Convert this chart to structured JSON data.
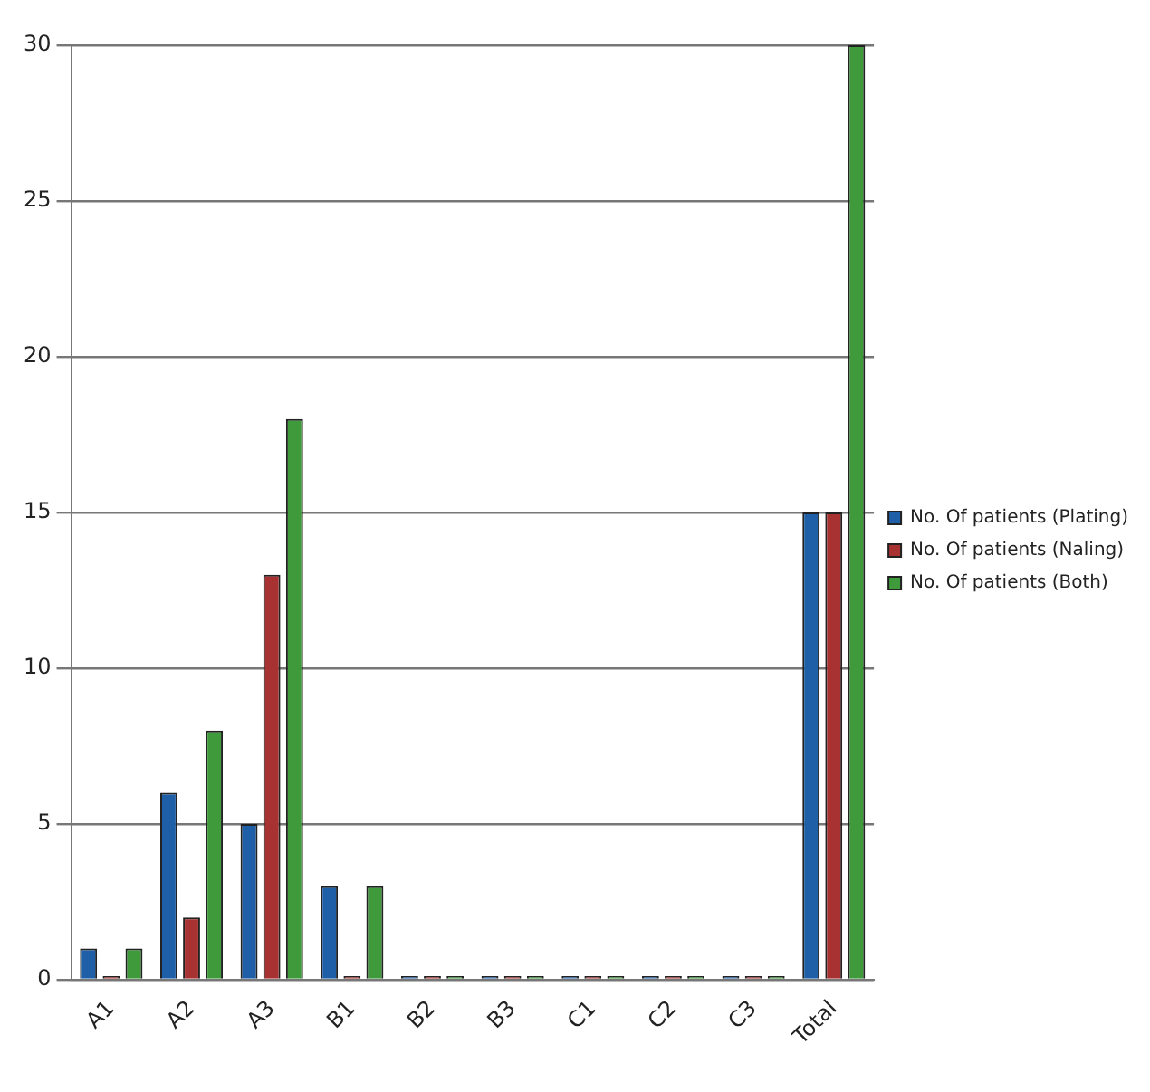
{
  "chart_data": {
    "type": "bar",
    "categories": [
      "A1",
      "A2",
      "A3",
      "B1",
      "B2",
      "B3",
      "C1",
      "C2",
      "C3",
      "Total"
    ],
    "series": [
      {
        "name": "No. Of patients (Plating)",
        "color": "#1f5fa8",
        "values": [
          1,
          6,
          5,
          3,
          0,
          0,
          0,
          0,
          0,
          15
        ]
      },
      {
        "name": "No. Of patients (Naling)",
        "color": "#a83232",
        "values": [
          0,
          2,
          13,
          0,
          0,
          0,
          0,
          0,
          0,
          15
        ]
      },
      {
        "name": "No. Of patients (Both)",
        "color": "#3e9a3a",
        "values": [
          1,
          8,
          18,
          3,
          0,
          0,
          0,
          0,
          0,
          30
        ]
      }
    ],
    "ylim": [
      0,
      30
    ],
    "yticks": [
      0,
      5,
      10,
      15,
      20,
      25,
      30
    ],
    "grid": "y",
    "legend": "right"
  }
}
